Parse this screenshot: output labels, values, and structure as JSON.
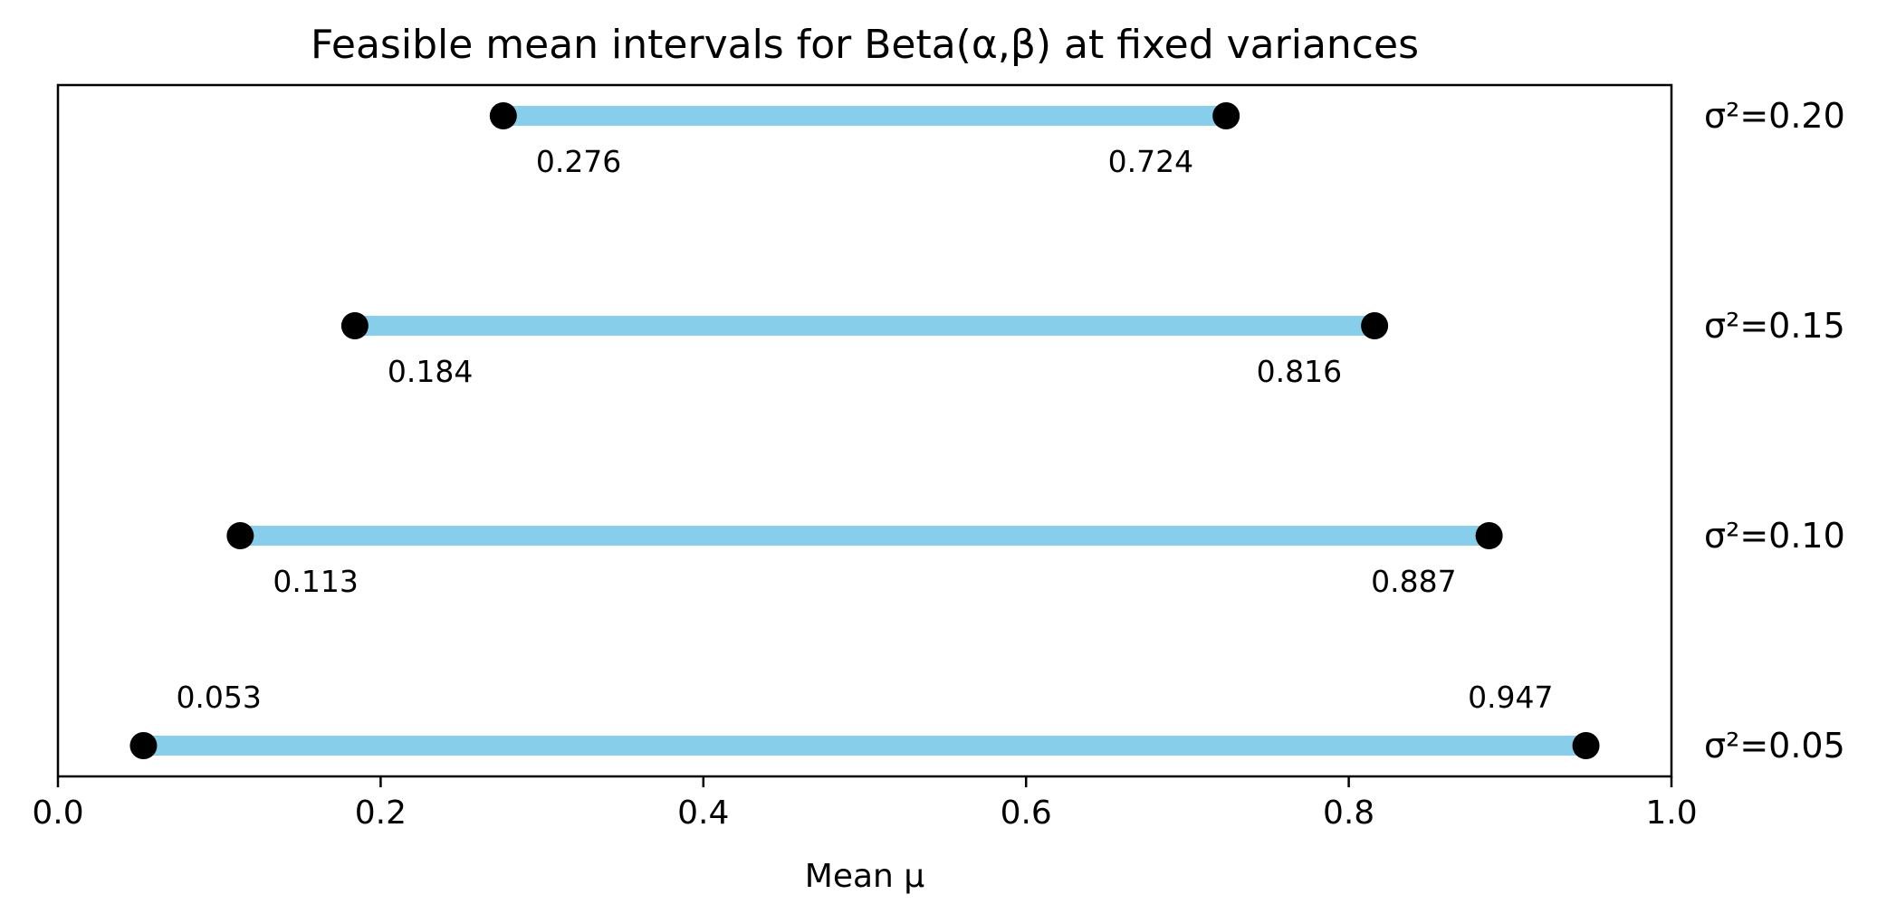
{
  "chart_data": {
    "type": "interval",
    "title": "Feasible mean intervals for Beta(α,β) at fixed variances",
    "xlabel": "Mean μ",
    "ylabel": "",
    "xlim": [
      0.0,
      1.0
    ],
    "x_ticks": [
      "0.0",
      "0.2",
      "0.4",
      "0.6",
      "0.8",
      "1.0"
    ],
    "x_tick_values": [
      0.0,
      0.2,
      0.4,
      0.6,
      0.8,
      1.0
    ],
    "grid": false,
    "series": [
      {
        "label": "σ²=0.20",
        "variance": 0.2,
        "low": 0.276,
        "high": 0.724,
        "low_label": "0.276",
        "high_label": "0.724",
        "label_position": "below"
      },
      {
        "label": "σ²=0.15",
        "variance": 0.15,
        "low": 0.184,
        "high": 0.816,
        "low_label": "0.184",
        "high_label": "0.816",
        "label_position": "below"
      },
      {
        "label": "σ²=0.10",
        "variance": 0.1,
        "low": 0.113,
        "high": 0.887,
        "low_label": "0.113",
        "high_label": "0.887",
        "label_position": "below"
      },
      {
        "label": "σ²=0.05",
        "variance": 0.05,
        "low": 0.053,
        "high": 0.947,
        "low_label": "0.053",
        "high_label": "0.947",
        "label_position": "above"
      }
    ],
    "colors": {
      "interval_bar": "#87ceeb",
      "endpoint": "#000000",
      "axes": "#000000"
    }
  }
}
